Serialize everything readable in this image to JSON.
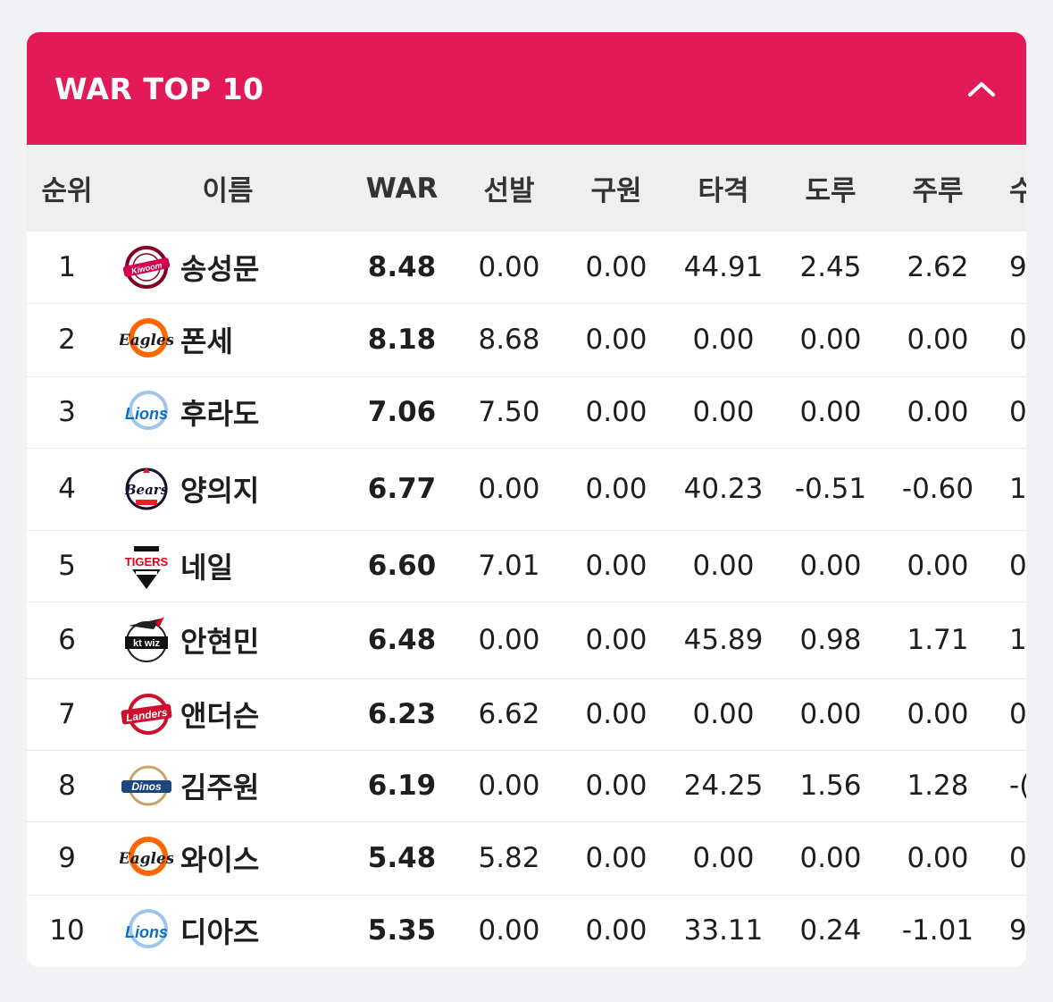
{
  "header": {
    "title": "WAR TOP 10",
    "collapse_icon": "chevron-up-icon"
  },
  "columns": [
    "순위",
    "이름",
    "WAR",
    "선발",
    "구원",
    "타격",
    "도루",
    "주루",
    "수"
  ],
  "rows": [
    {
      "rank": "1",
      "team_logo": "kiwoom-logo",
      "logo_text": "Kiwoom",
      "name": "송성문",
      "war": "8.48",
      "sp": "0.00",
      "rp": "0.00",
      "bat": "44.91",
      "sb": "2.45",
      "run": "2.62",
      "extra": "9"
    },
    {
      "rank": "2",
      "team_logo": "eagles-logo",
      "logo_text": "Eagles",
      "name": "폰세",
      "war": "8.18",
      "sp": "8.68",
      "rp": "0.00",
      "bat": "0.00",
      "sb": "0.00",
      "run": "0.00",
      "extra": "0"
    },
    {
      "rank": "3",
      "team_logo": "lions-logo",
      "logo_text": "Lions",
      "name": "후라도",
      "war": "7.06",
      "sp": "7.50",
      "rp": "0.00",
      "bat": "0.00",
      "sb": "0.00",
      "run": "0.00",
      "extra": "0"
    },
    {
      "rank": "4",
      "team_logo": "bears-logo",
      "logo_text": "Bears",
      "name": "양의지",
      "war": "6.77",
      "sp": "0.00",
      "rp": "0.00",
      "bat": "40.23",
      "sb": "-0.51",
      "run": "-0.60",
      "extra": "1"
    },
    {
      "rank": "5",
      "team_logo": "tigers-logo",
      "logo_text": "TIGERS",
      "name": "네일",
      "war": "6.60",
      "sp": "7.01",
      "rp": "0.00",
      "bat": "0.00",
      "sb": "0.00",
      "run": "0.00",
      "extra": "0"
    },
    {
      "rank": "6",
      "team_logo": "ktwiz-logo",
      "logo_text": "kt wiz",
      "name": "안현민",
      "war": "6.48",
      "sp": "0.00",
      "rp": "0.00",
      "bat": "45.89",
      "sb": "0.98",
      "run": "1.71",
      "extra": "1"
    },
    {
      "rank": "7",
      "team_logo": "landers-logo",
      "logo_text": "Landers",
      "name": "앤더슨",
      "war": "6.23",
      "sp": "6.62",
      "rp": "0.00",
      "bat": "0.00",
      "sb": "0.00",
      "run": "0.00",
      "extra": "0"
    },
    {
      "rank": "8",
      "team_logo": "dinos-logo",
      "logo_text": "Dinos",
      "name": "김주원",
      "war": "6.19",
      "sp": "0.00",
      "rp": "0.00",
      "bat": "24.25",
      "sb": "1.56",
      "run": "1.28",
      "extra": "-("
    },
    {
      "rank": "9",
      "team_logo": "eagles-logo",
      "logo_text": "Eagles",
      "name": "와이스",
      "war": "5.48",
      "sp": "5.82",
      "rp": "0.00",
      "bat": "0.00",
      "sb": "0.00",
      "run": "0.00",
      "extra": "0"
    },
    {
      "rank": "10",
      "team_logo": "lions-logo",
      "logo_text": "Lions",
      "name": "디아즈",
      "war": "5.35",
      "sp": "0.00",
      "rp": "0.00",
      "bat": "33.11",
      "sb": "0.24",
      "run": "-1.01",
      "extra": "9"
    }
  ],
  "colors": {
    "header_bg": "#e21a58",
    "table_header_bg": "#efeff0",
    "page_bg": "#f2f2f4"
  }
}
